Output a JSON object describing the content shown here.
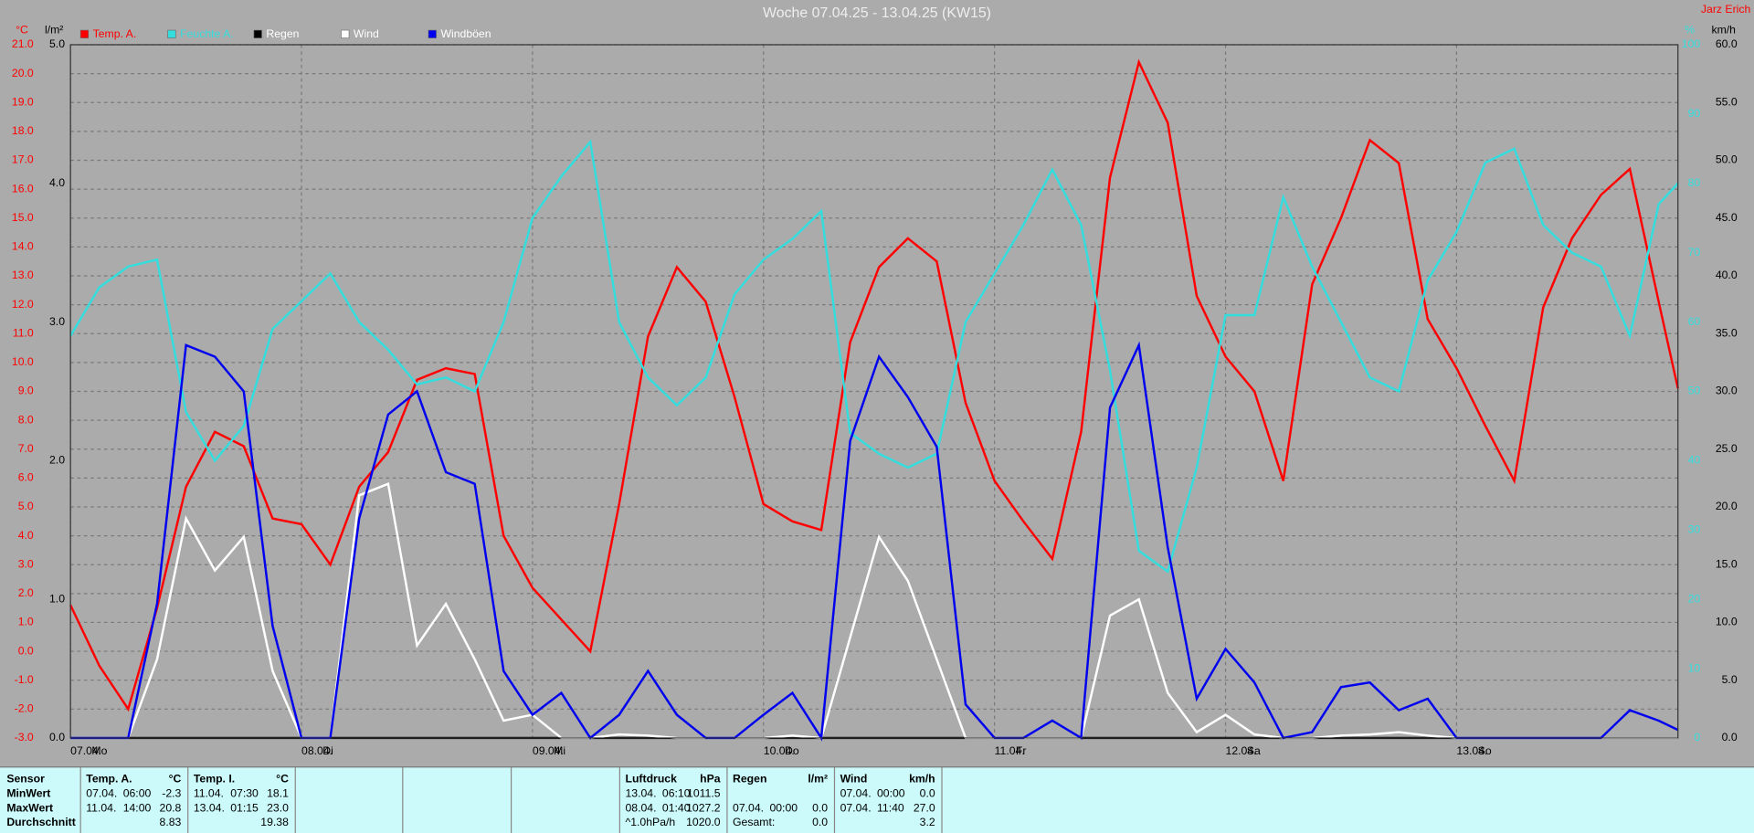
{
  "chart_data": {
    "type": "line",
    "title": "Woche 07.04.25 - 13.04.25 (KW15)",
    "author": "Jarz Erich",
    "y_unit": "°C",
    "y2_unit": "km/h",
    "y3_unit": "l/m²",
    "y4_unit": "%",
    "xlim": [
      0,
      167
    ],
    "xticks": [
      {
        "value": 0,
        "label": "07.04."
      },
      {
        "value": 24,
        "label": "08.04."
      },
      {
        "value": 48,
        "label": "09.04."
      },
      {
        "value": 72,
        "label": "10.04."
      },
      {
        "value": 96,
        "label": "11.04."
      },
      {
        "value": 120,
        "label": "12.04."
      },
      {
        "value": 144,
        "label": "13.04."
      }
    ],
    "weekdays": [
      "Mo",
      "Di",
      "Mi",
      "Do",
      "Fr",
      "Sa",
      "So"
    ],
    "ylim": [
      -3,
      21
    ],
    "yticks": [
      {
        "value": -3,
        "label": "-3.0"
      },
      {
        "value": -2,
        "label": "-2.0"
      },
      {
        "value": -1,
        "label": "-1.0"
      },
      {
        "value": 0,
        "label": "0.0"
      },
      {
        "value": 1,
        "label": "1.0"
      },
      {
        "value": 2,
        "label": "2.0"
      },
      {
        "value": 3,
        "label": "3.0"
      },
      {
        "value": 4,
        "label": "4.0"
      },
      {
        "value": 5,
        "label": "5.0"
      },
      {
        "value": 6,
        "label": "6.0"
      },
      {
        "value": 7,
        "label": "7.0"
      },
      {
        "value": 8,
        "label": "8.0"
      },
      {
        "value": 9,
        "label": "9.0"
      },
      {
        "value": 10,
        "label": "10.0"
      },
      {
        "value": 11,
        "label": "11.0"
      },
      {
        "value": 12,
        "label": "12.0"
      },
      {
        "value": 13,
        "label": "13.0"
      },
      {
        "value": 14,
        "label": "14.0"
      },
      {
        "value": 15,
        "label": "15.0"
      },
      {
        "value": 16,
        "label": "16.0"
      },
      {
        "value": 17,
        "label": "17.0"
      },
      {
        "value": 18,
        "label": "18.0"
      },
      {
        "value": 19,
        "label": "19.0"
      },
      {
        "value": 20,
        "label": "20.0"
      },
      {
        "value": 21,
        "label": "21.0"
      }
    ],
    "y2lim": [
      0,
      60
    ],
    "y2ticks": [
      {
        "value": 0,
        "label": "0.0"
      },
      {
        "value": 5,
        "label": "5.0"
      },
      {
        "value": 10,
        "label": "10.0"
      },
      {
        "value": 15,
        "label": "15.0"
      },
      {
        "value": 20,
        "label": "20.0"
      },
      {
        "value": 25,
        "label": "25.0"
      },
      {
        "value": 30,
        "label": "30.0"
      },
      {
        "value": 35,
        "label": "35.0"
      },
      {
        "value": 40,
        "label": "40.0"
      },
      {
        "value": 45,
        "label": "45.0"
      },
      {
        "value": 50,
        "label": "50.0"
      },
      {
        "value": 55,
        "label": "55.0"
      },
      {
        "value": 60,
        "label": "60.0"
      }
    ],
    "y3lim": [
      0,
      5
    ],
    "y3ticks": [
      {
        "value": 0,
        "label": "0.0"
      },
      {
        "value": 1,
        "label": "1.0"
      },
      {
        "value": 2,
        "label": "2.0"
      },
      {
        "value": 3,
        "label": "3.0"
      },
      {
        "value": 4,
        "label": "4.0"
      },
      {
        "value": 5,
        "label": "5.0"
      }
    ],
    "y4lim": [
      0,
      100
    ],
    "y4ticks": [
      0,
      10,
      20,
      30,
      40,
      50,
      60,
      70,
      80,
      90,
      100
    ],
    "grid": true,
    "x": [
      0,
      3,
      6,
      9,
      12,
      15,
      18,
      21,
      24,
      27,
      30,
      33,
      36,
      39,
      42,
      45,
      48,
      51,
      54,
      57,
      60,
      63,
      66,
      69,
      72,
      75,
      78,
      81,
      84,
      87,
      90,
      93,
      96,
      99,
      102,
      105,
      108,
      111,
      114,
      117,
      120,
      123,
      126,
      129,
      132,
      135,
      138,
      141,
      144,
      147,
      150,
      153,
      156,
      159,
      162,
      165,
      167
    ],
    "series": [
      {
        "name": "Temp. A.",
        "color": "#ff0000",
        "axis": "y",
        "values": [
          1.6,
          -0.5,
          -2.0,
          1.5,
          5.7,
          7.6,
          7.1,
          4.6,
          4.4,
          3.0,
          5.7,
          6.9,
          9.4,
          9.8,
          9.6,
          4.0,
          2.2,
          1.1,
          0.0,
          5.1,
          10.9,
          13.3,
          12.1,
          8.8,
          5.1,
          4.5,
          4.2,
          10.7,
          13.3,
          14.3,
          13.5,
          8.6,
          5.9,
          4.5,
          3.2,
          7.6,
          16.4,
          20.4,
          18.3,
          12.3,
          10.2,
          9.0,
          5.9,
          12.7,
          15.0,
          17.7,
          16.9,
          11.5,
          9.8,
          7.8,
          5.9,
          11.9,
          14.3,
          15.8,
          16.7,
          12.1,
          9.1
        ]
      },
      {
        "name": "Feuchte A.",
        "color": "#33dddd",
        "axis": "y4",
        "values": [
          58,
          65,
          68,
          69,
          47,
          40,
          45,
          59,
          63,
          67,
          60,
          56,
          51,
          52,
          50,
          60,
          75,
          81,
          86,
          60,
          52,
          48,
          52,
          64,
          69,
          72,
          76,
          44,
          41,
          39,
          41,
          60,
          67,
          74,
          82,
          74,
          53,
          27,
          24,
          39,
          61,
          61,
          78,
          68,
          60,
          52,
          50,
          66,
          73,
          83,
          85,
          74,
          70,
          68,
          58,
          77,
          80
        ]
      },
      {
        "name": "Regen",
        "color": "#000000",
        "axis": "y3",
        "values": [
          0,
          0,
          0,
          0,
          0,
          0,
          0,
          0,
          0,
          0,
          0,
          0,
          0,
          0,
          0,
          0,
          0,
          0,
          0,
          0,
          0,
          0,
          0,
          0,
          0,
          0,
          0,
          0,
          0,
          0,
          0,
          0,
          0,
          0,
          0,
          0,
          0,
          0,
          0,
          0,
          0,
          0,
          0,
          0,
          0,
          0,
          0,
          0,
          0,
          0,
          0,
          0,
          0,
          0,
          0,
          0,
          0
        ]
      },
      {
        "name": "Wind",
        "color": "#ffffff",
        "axis": "y2",
        "values": [
          0,
          0,
          0,
          6.8,
          19,
          14.5,
          17.4,
          5.8,
          0,
          0,
          21,
          22,
          8,
          11.6,
          6.8,
          1.5,
          2,
          0,
          0,
          0.3,
          0.2,
          0,
          0,
          0,
          0,
          0.2,
          0,
          8.7,
          17.4,
          13.6,
          6.8,
          0,
          0,
          0,
          0,
          0,
          10.6,
          12,
          3.9,
          0.5,
          2,
          0.3,
          0,
          0,
          0.2,
          0.3,
          0.5,
          0.2,
          0,
          0,
          0,
          0,
          0,
          0,
          0,
          0,
          0
        ]
      },
      {
        "name": "Windböen",
        "color": "#0000ee",
        "axis": "y2",
        "values": [
          0,
          0,
          0,
          11.6,
          34,
          33,
          30,
          9.7,
          0,
          0,
          19,
          28,
          30,
          23,
          22,
          5.8,
          2,
          3.9,
          0,
          2,
          5.8,
          2,
          0,
          0,
          2,
          3.9,
          0,
          25.7,
          33,
          29.5,
          25.2,
          2.9,
          0,
          0,
          1.5,
          0,
          28.6,
          34,
          16.5,
          3.4,
          7.7,
          4.8,
          0,
          0.5,
          4.4,
          4.8,
          2.4,
          3.4,
          0,
          0,
          0,
          0,
          0,
          0,
          2.4,
          1.5,
          0.7
        ]
      }
    ]
  },
  "stats": {
    "row_labels": [
      "Sensor",
      "MinWert",
      "MaxWert",
      "Durchschnitt"
    ],
    "columns": [
      {
        "name": "Temp. A.",
        "unit": "°C",
        "rows": [
          [
            "07.04.",
            "06:00",
            "-2.3"
          ],
          [
            "11.04.",
            "14:00",
            "20.8"
          ],
          [
            "8.83"
          ]
        ]
      },
      {
        "name": "Temp. I.",
        "unit": "°C",
        "rows": [
          [
            "11.04.",
            "07:30",
            "18.1"
          ],
          [
            "13.04.",
            "01:15",
            "23.0"
          ],
          [
            "19.38"
          ]
        ]
      },
      {
        "name": "Luftdruck",
        "unit": "hPa",
        "rows": [
          [
            "13.04.",
            "06:10",
            "1011.5"
          ],
          [
            "08.04.",
            "01:40",
            "1027.2"
          ],
          [
            "^1.0hPa/h",
            "1020.0"
          ]
        ]
      },
      {
        "name": "Regen",
        "unit": "l/m²",
        "rows": [
          [],
          [
            "07.04.",
            "00:00",
            "0.0"
          ],
          [
            "Gesamt:",
            "0.0"
          ]
        ]
      },
      {
        "name": "Wind",
        "unit": "km/h",
        "rows": [
          [
            "07.04.",
            "00:00",
            "0.0"
          ],
          [
            "07.04.",
            "11:40",
            "27.0"
          ],
          [
            "3.2"
          ]
        ]
      }
    ]
  }
}
